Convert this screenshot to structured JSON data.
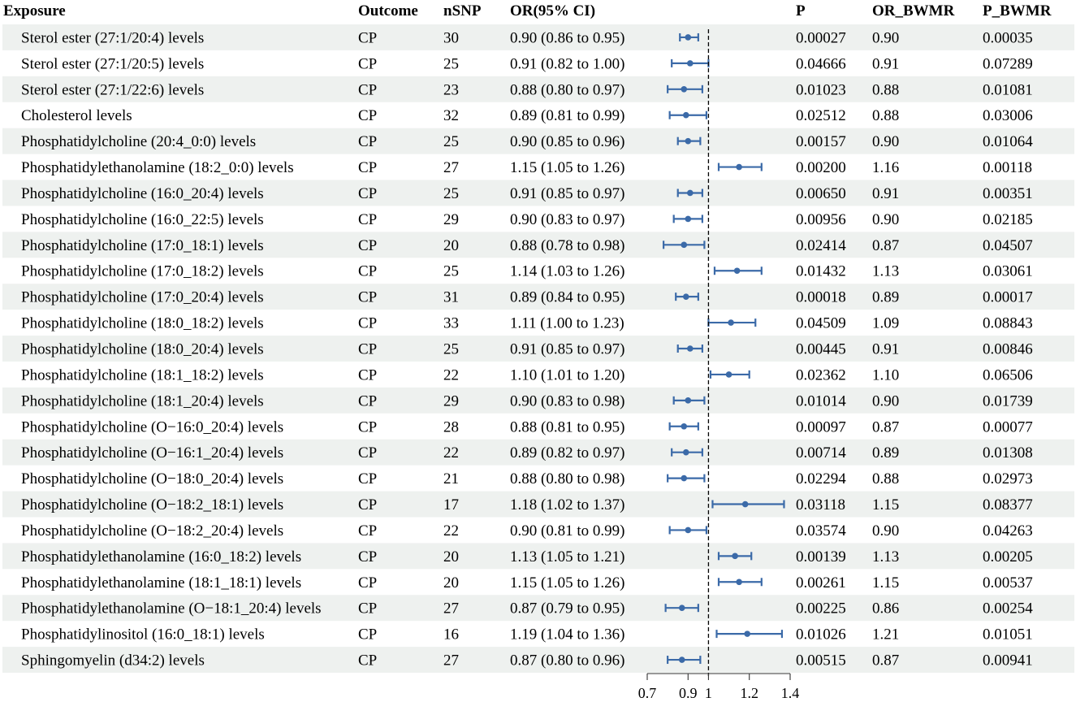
{
  "headers": {
    "exposure": "Exposure",
    "outcome": "Outcome",
    "nsnp": "nSNP",
    "or": "OR(95% CI)",
    "p": "P",
    "or_bwmr": "OR_BWMR",
    "p_bwmr": "P_BWMR"
  },
  "colors": {
    "point": "#3b6aa8",
    "stripe": "#eef1ef",
    "axis": "#333333"
  },
  "chart_data": {
    "type": "forest",
    "reference_line": 1,
    "reference_line_style": "dashed",
    "x_ticks": [
      0.7,
      0.9,
      1,
      1.2,
      1.4
    ],
    "x_tick_labels": [
      "0.7",
      "0.9",
      "1",
      "1.2",
      "1.4"
    ],
    "xlim": [
      0.7,
      1.4
    ],
    "rows": [
      {
        "exposure": "Sterol ester (27:1/20:4) levels",
        "outcome": "CP",
        "nsnp": "30",
        "or_ci": "0.90 (0.86 to 0.95)",
        "or": 0.9,
        "lower": 0.86,
        "upper": 0.95,
        "p": "0.00027",
        "or_bwmr": "0.90",
        "p_bwmr": "0.00035"
      },
      {
        "exposure": "Sterol ester (27:1/20:5) levels",
        "outcome": "CP",
        "nsnp": "25",
        "or_ci": "0.91 (0.82 to 1.00)",
        "or": 0.91,
        "lower": 0.82,
        "upper": 1.0,
        "p": "0.04666",
        "or_bwmr": "0.91",
        "p_bwmr": "0.07289"
      },
      {
        "exposure": "Sterol ester (27:1/22:6) levels",
        "outcome": "CP",
        "nsnp": "23",
        "or_ci": "0.88 (0.80 to 0.97)",
        "or": 0.88,
        "lower": 0.8,
        "upper": 0.97,
        "p": "0.01023",
        "or_bwmr": "0.88",
        "p_bwmr": "0.01081"
      },
      {
        "exposure": "Cholesterol levels",
        "outcome": "CP",
        "nsnp": "32",
        "or_ci": "0.89 (0.81 to 0.99)",
        "or": 0.89,
        "lower": 0.81,
        "upper": 0.99,
        "p": "0.02512",
        "or_bwmr": "0.88",
        "p_bwmr": "0.03006"
      },
      {
        "exposure": "Phosphatidylcholine (20:4_0:0) levels",
        "outcome": "CP",
        "nsnp": "25",
        "or_ci": "0.90 (0.85 to 0.96)",
        "or": 0.9,
        "lower": 0.85,
        "upper": 0.96,
        "p": "0.00157",
        "or_bwmr": "0.90",
        "p_bwmr": "0.01064"
      },
      {
        "exposure": "Phosphatidylethanolamine (18:2_0:0) levels",
        "outcome": "CP",
        "nsnp": "27",
        "or_ci": "1.15 (1.05 to 1.26)",
        "or": 1.15,
        "lower": 1.05,
        "upper": 1.26,
        "p": "0.00200",
        "or_bwmr": "1.16",
        "p_bwmr": "0.00118"
      },
      {
        "exposure": "Phosphatidylcholine (16:0_20:4) levels",
        "outcome": "CP",
        "nsnp": "25",
        "or_ci": "0.91 (0.85 to 0.97)",
        "or": 0.91,
        "lower": 0.85,
        "upper": 0.97,
        "p": "0.00650",
        "or_bwmr": "0.91",
        "p_bwmr": "0.00351"
      },
      {
        "exposure": "Phosphatidylcholine (16:0_22:5) levels",
        "outcome": "CP",
        "nsnp": "29",
        "or_ci": "0.90 (0.83 to 0.97)",
        "or": 0.9,
        "lower": 0.83,
        "upper": 0.97,
        "p": "0.00956",
        "or_bwmr": "0.90",
        "p_bwmr": "0.02185"
      },
      {
        "exposure": "Phosphatidylcholine (17:0_18:1) levels",
        "outcome": "CP",
        "nsnp": "20",
        "or_ci": "0.88 (0.78 to 0.98)",
        "or": 0.88,
        "lower": 0.78,
        "upper": 0.98,
        "p": "0.02414",
        "or_bwmr": "0.87",
        "p_bwmr": "0.04507"
      },
      {
        "exposure": "Phosphatidylcholine (17:0_18:2) levels",
        "outcome": "CP",
        "nsnp": "25",
        "or_ci": "1.14 (1.03 to 1.26)",
        "or": 1.14,
        "lower": 1.03,
        "upper": 1.26,
        "p": "0.01432",
        "or_bwmr": "1.13",
        "p_bwmr": "0.03061"
      },
      {
        "exposure": "Phosphatidylcholine (17:0_20:4) levels",
        "outcome": "CP",
        "nsnp": "31",
        "or_ci": "0.89 (0.84 to 0.95)",
        "or": 0.89,
        "lower": 0.84,
        "upper": 0.95,
        "p": "0.00018",
        "or_bwmr": "0.89",
        "p_bwmr": "0.00017"
      },
      {
        "exposure": "Phosphatidylcholine (18:0_18:2) levels",
        "outcome": "CP",
        "nsnp": "33",
        "or_ci": "1.11 (1.00 to 1.23)",
        "or": 1.11,
        "lower": 1.0,
        "upper": 1.23,
        "p": "0.04509",
        "or_bwmr": "1.09",
        "p_bwmr": "0.08843"
      },
      {
        "exposure": "Phosphatidylcholine (18:0_20:4) levels",
        "outcome": "CP",
        "nsnp": "25",
        "or_ci": "0.91 (0.85 to 0.97)",
        "or": 0.91,
        "lower": 0.85,
        "upper": 0.97,
        "p": "0.00445",
        "or_bwmr": "0.91",
        "p_bwmr": "0.00846"
      },
      {
        "exposure": "Phosphatidylcholine (18:1_18:2) levels",
        "outcome": "CP",
        "nsnp": "22",
        "or_ci": "1.10 (1.01 to 1.20)",
        "or": 1.1,
        "lower": 1.01,
        "upper": 1.2,
        "p": "0.02362",
        "or_bwmr": "1.10",
        "p_bwmr": "0.06506"
      },
      {
        "exposure": "Phosphatidylcholine (18:1_20:4) levels",
        "outcome": "CP",
        "nsnp": "29",
        "or_ci": "0.90 (0.83 to 0.98)",
        "or": 0.9,
        "lower": 0.83,
        "upper": 0.98,
        "p": "0.01014",
        "or_bwmr": "0.90",
        "p_bwmr": "0.01739"
      },
      {
        "exposure": "Phosphatidylcholine (O−16:0_20:4) levels",
        "outcome": "CP",
        "nsnp": "28",
        "or_ci": "0.88 (0.81 to 0.95)",
        "or": 0.88,
        "lower": 0.81,
        "upper": 0.95,
        "p": "0.00097",
        "or_bwmr": "0.87",
        "p_bwmr": "0.00077"
      },
      {
        "exposure": "Phosphatidylcholine (O−16:1_20:4) levels",
        "outcome": "CP",
        "nsnp": "22",
        "or_ci": "0.89 (0.82 to 0.97)",
        "or": 0.89,
        "lower": 0.82,
        "upper": 0.97,
        "p": "0.00714",
        "or_bwmr": "0.89",
        "p_bwmr": "0.01308"
      },
      {
        "exposure": "Phosphatidylcholine (O−18:0_20:4) levels",
        "outcome": "CP",
        "nsnp": "21",
        "or_ci": "0.88 (0.80 to 0.98)",
        "or": 0.88,
        "lower": 0.8,
        "upper": 0.98,
        "p": "0.02294",
        "or_bwmr": "0.88",
        "p_bwmr": "0.02973"
      },
      {
        "exposure": "Phosphatidylcholine (O−18:2_18:1) levels",
        "outcome": "CP",
        "nsnp": "17",
        "or_ci": "1.18 (1.02 to 1.37)",
        "or": 1.18,
        "lower": 1.02,
        "upper": 1.37,
        "p": "0.03118",
        "or_bwmr": "1.15",
        "p_bwmr": "0.08377"
      },
      {
        "exposure": "Phosphatidylcholine (O−18:2_20:4) levels",
        "outcome": "CP",
        "nsnp": "22",
        "or_ci": "0.90 (0.81 to 0.99)",
        "or": 0.9,
        "lower": 0.81,
        "upper": 0.99,
        "p": "0.03574",
        "or_bwmr": "0.90",
        "p_bwmr": "0.04263"
      },
      {
        "exposure": "Phosphatidylethanolamine (16:0_18:2) levels",
        "outcome": "CP",
        "nsnp": "20",
        "or_ci": "1.13 (1.05 to 1.21)",
        "or": 1.13,
        "lower": 1.05,
        "upper": 1.21,
        "p": "0.00139",
        "or_bwmr": "1.13",
        "p_bwmr": "0.00205"
      },
      {
        "exposure": "Phosphatidylethanolamine (18:1_18:1) levels",
        "outcome": "CP",
        "nsnp": "20",
        "or_ci": "1.15 (1.05 to 1.26)",
        "or": 1.15,
        "lower": 1.05,
        "upper": 1.26,
        "p": "0.00261",
        "or_bwmr": "1.15",
        "p_bwmr": "0.00537"
      },
      {
        "exposure": "Phosphatidylethanolamine (O−18:1_20:4) levels",
        "outcome": "CP",
        "nsnp": "27",
        "or_ci": "0.87 (0.79 to 0.95)",
        "or": 0.87,
        "lower": 0.79,
        "upper": 0.95,
        "p": "0.00225",
        "or_bwmr": "0.86",
        "p_bwmr": "0.00254"
      },
      {
        "exposure": "Phosphatidylinositol (16:0_18:1) levels",
        "outcome": "CP",
        "nsnp": "16",
        "or_ci": "1.19 (1.04 to 1.36)",
        "or": 1.19,
        "lower": 1.04,
        "upper": 1.36,
        "p": "0.01026",
        "or_bwmr": "1.21",
        "p_bwmr": "0.01051"
      },
      {
        "exposure": "Sphingomyelin (d34:2) levels",
        "outcome": "CP",
        "nsnp": "27",
        "or_ci": "0.87 (0.80 to 0.96)",
        "or": 0.87,
        "lower": 0.8,
        "upper": 0.96,
        "p": "0.00515",
        "or_bwmr": "0.87",
        "p_bwmr": "0.00941"
      }
    ]
  }
}
